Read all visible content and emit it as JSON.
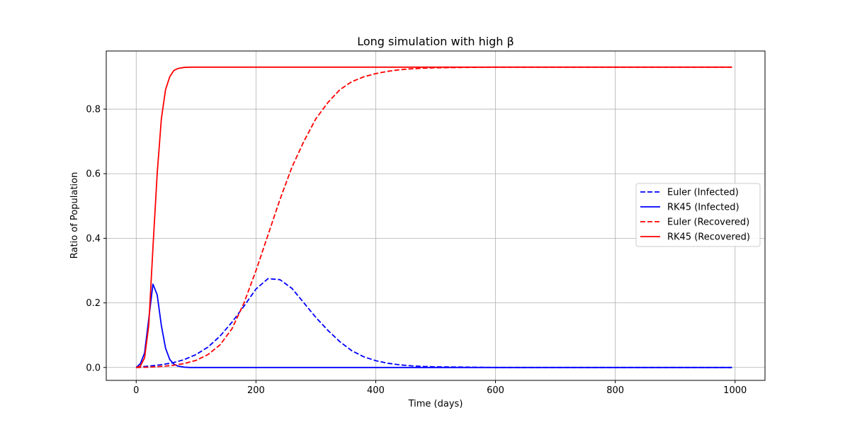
{
  "chart_data": {
    "type": "line",
    "title": "Long simulation with high β",
    "xlabel": "Time (days)",
    "ylabel": "Ratio of Population",
    "xlim": [
      -50,
      1050
    ],
    "ylim": [
      -0.04,
      0.98
    ],
    "xticks": [
      0,
      200,
      400,
      600,
      800,
      1000
    ],
    "yticks": [
      0.0,
      0.2,
      0.4,
      0.6,
      0.8
    ],
    "xtick_labels": [
      "0",
      "200",
      "400",
      "600",
      "800",
      "1000"
    ],
    "ytick_labels": [
      "0.0",
      "0.2",
      "0.4",
      "0.6",
      "0.8"
    ],
    "grid": true,
    "legend_position": "center-right",
    "series": [
      {
        "name": "Euler (Infected)",
        "color": "#0000ff",
        "style": "dashed",
        "x": [
          0,
          20,
          40,
          60,
          80,
          100,
          120,
          140,
          160,
          180,
          200,
          220,
          240,
          260,
          280,
          300,
          320,
          340,
          360,
          380,
          400,
          420,
          440,
          460,
          480,
          500,
          550,
          600,
          700,
          800,
          900,
          995
        ],
        "y": [
          0.0,
          0.004,
          0.008,
          0.014,
          0.024,
          0.04,
          0.063,
          0.097,
          0.14,
          0.19,
          0.243,
          0.275,
          0.272,
          0.245,
          0.2,
          0.155,
          0.115,
          0.08,
          0.052,
          0.033,
          0.021,
          0.013,
          0.008,
          0.005,
          0.003,
          0.002,
          0.001,
          0.0,
          0.0,
          0.0,
          0.0,
          0.0
        ]
      },
      {
        "name": "RK45 (Infected)",
        "color": "#0000ff",
        "style": "solid",
        "x": [
          0,
          7,
          14,
          21,
          28,
          35,
          42,
          49,
          56,
          63,
          70,
          80,
          90,
          100,
          200,
          400,
          600,
          800,
          995
        ],
        "y": [
          0.0,
          0.012,
          0.045,
          0.15,
          0.258,
          0.225,
          0.13,
          0.06,
          0.025,
          0.01,
          0.004,
          0.001,
          0.0,
          0.0,
          0.0,
          0.0,
          0.0,
          0.0,
          0.0
        ]
      },
      {
        "name": "Euler (Recovered)",
        "color": "#ff0000",
        "style": "dashed",
        "x": [
          0,
          20,
          40,
          60,
          80,
          100,
          120,
          140,
          160,
          180,
          200,
          220,
          240,
          260,
          280,
          300,
          320,
          340,
          360,
          380,
          400,
          420,
          440,
          460,
          480,
          500,
          550,
          600,
          700,
          800,
          900,
          995
        ],
        "y": [
          0.0,
          0.001,
          0.003,
          0.006,
          0.012,
          0.022,
          0.04,
          0.07,
          0.12,
          0.2,
          0.3,
          0.41,
          0.52,
          0.62,
          0.7,
          0.77,
          0.82,
          0.86,
          0.885,
          0.9,
          0.91,
          0.917,
          0.922,
          0.925,
          0.927,
          0.928,
          0.929,
          0.93,
          0.93,
          0.93,
          0.93,
          0.93
        ]
      },
      {
        "name": "RK45 (Recovered)",
        "color": "#ff0000",
        "style": "solid",
        "x": [
          0,
          7,
          14,
          21,
          28,
          35,
          42,
          49,
          56,
          63,
          70,
          80,
          90,
          100,
          200,
          400,
          600,
          800,
          995
        ],
        "y": [
          0.0,
          0.004,
          0.03,
          0.13,
          0.37,
          0.6,
          0.77,
          0.86,
          0.9,
          0.92,
          0.926,
          0.929,
          0.93,
          0.93,
          0.93,
          0.93,
          0.93,
          0.93,
          0.93
        ]
      }
    ]
  }
}
